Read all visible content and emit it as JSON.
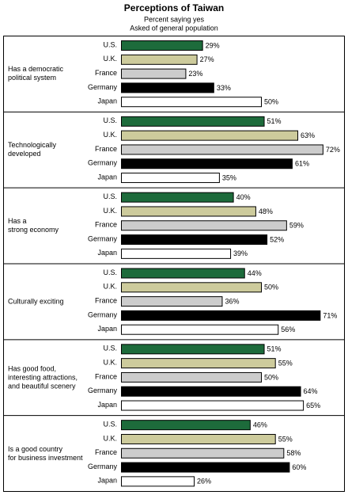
{
  "chart_data": {
    "type": "bar",
    "orientation": "horizontal",
    "title": "Perceptions of Taiwan",
    "subtitle": [
      "Percent saying yes",
      "Asked of general population"
    ],
    "categories": [
      "Has a democratic\npolitical system",
      "Technologically\ndeveloped",
      "Has a\nstrong economy",
      "Culturally exciting",
      "Has good food,\ninteresting attractions,\nand beautiful scenery",
      "Is a good country\nfor business investment"
    ],
    "series": [
      {
        "name": "U.S.",
        "color": "#1d6b3b",
        "values": [
          29,
          51,
          40,
          44,
          51,
          46
        ],
        "value_labels": [
          "29%",
          "51%",
          "40%",
          "44%",
          "51%",
          "46%"
        ]
      },
      {
        "name": "U.K.",
        "color": "#cdcb9c",
        "values": [
          27,
          63,
          48,
          50,
          55,
          55
        ],
        "value_labels": [
          "27%",
          "63%",
          "48%",
          "50%",
          "55%",
          "55%"
        ]
      },
      {
        "name": "France",
        "color": "#cccccc",
        "values": [
          23,
          72,
          59,
          36,
          50,
          58
        ],
        "value_labels": [
          "23%",
          "72%",
          "59%",
          "36%",
          "50%",
          "58%"
        ]
      },
      {
        "name": "Germany",
        "color": "#000000",
        "values": [
          33,
          61,
          52,
          71,
          64,
          60
        ],
        "value_labels": [
          "33%",
          "61%",
          "52%",
          "71%",
          "64%",
          "60%"
        ]
      },
      {
        "name": "Japan",
        "color": "#ffffff",
        "values": [
          50,
          35,
          39,
          56,
          65,
          26
        ],
        "value_labels": [
          "50%",
          "35%",
          "39%",
          "56%",
          "65%",
          "26%"
        ]
      }
    ]
  }
}
